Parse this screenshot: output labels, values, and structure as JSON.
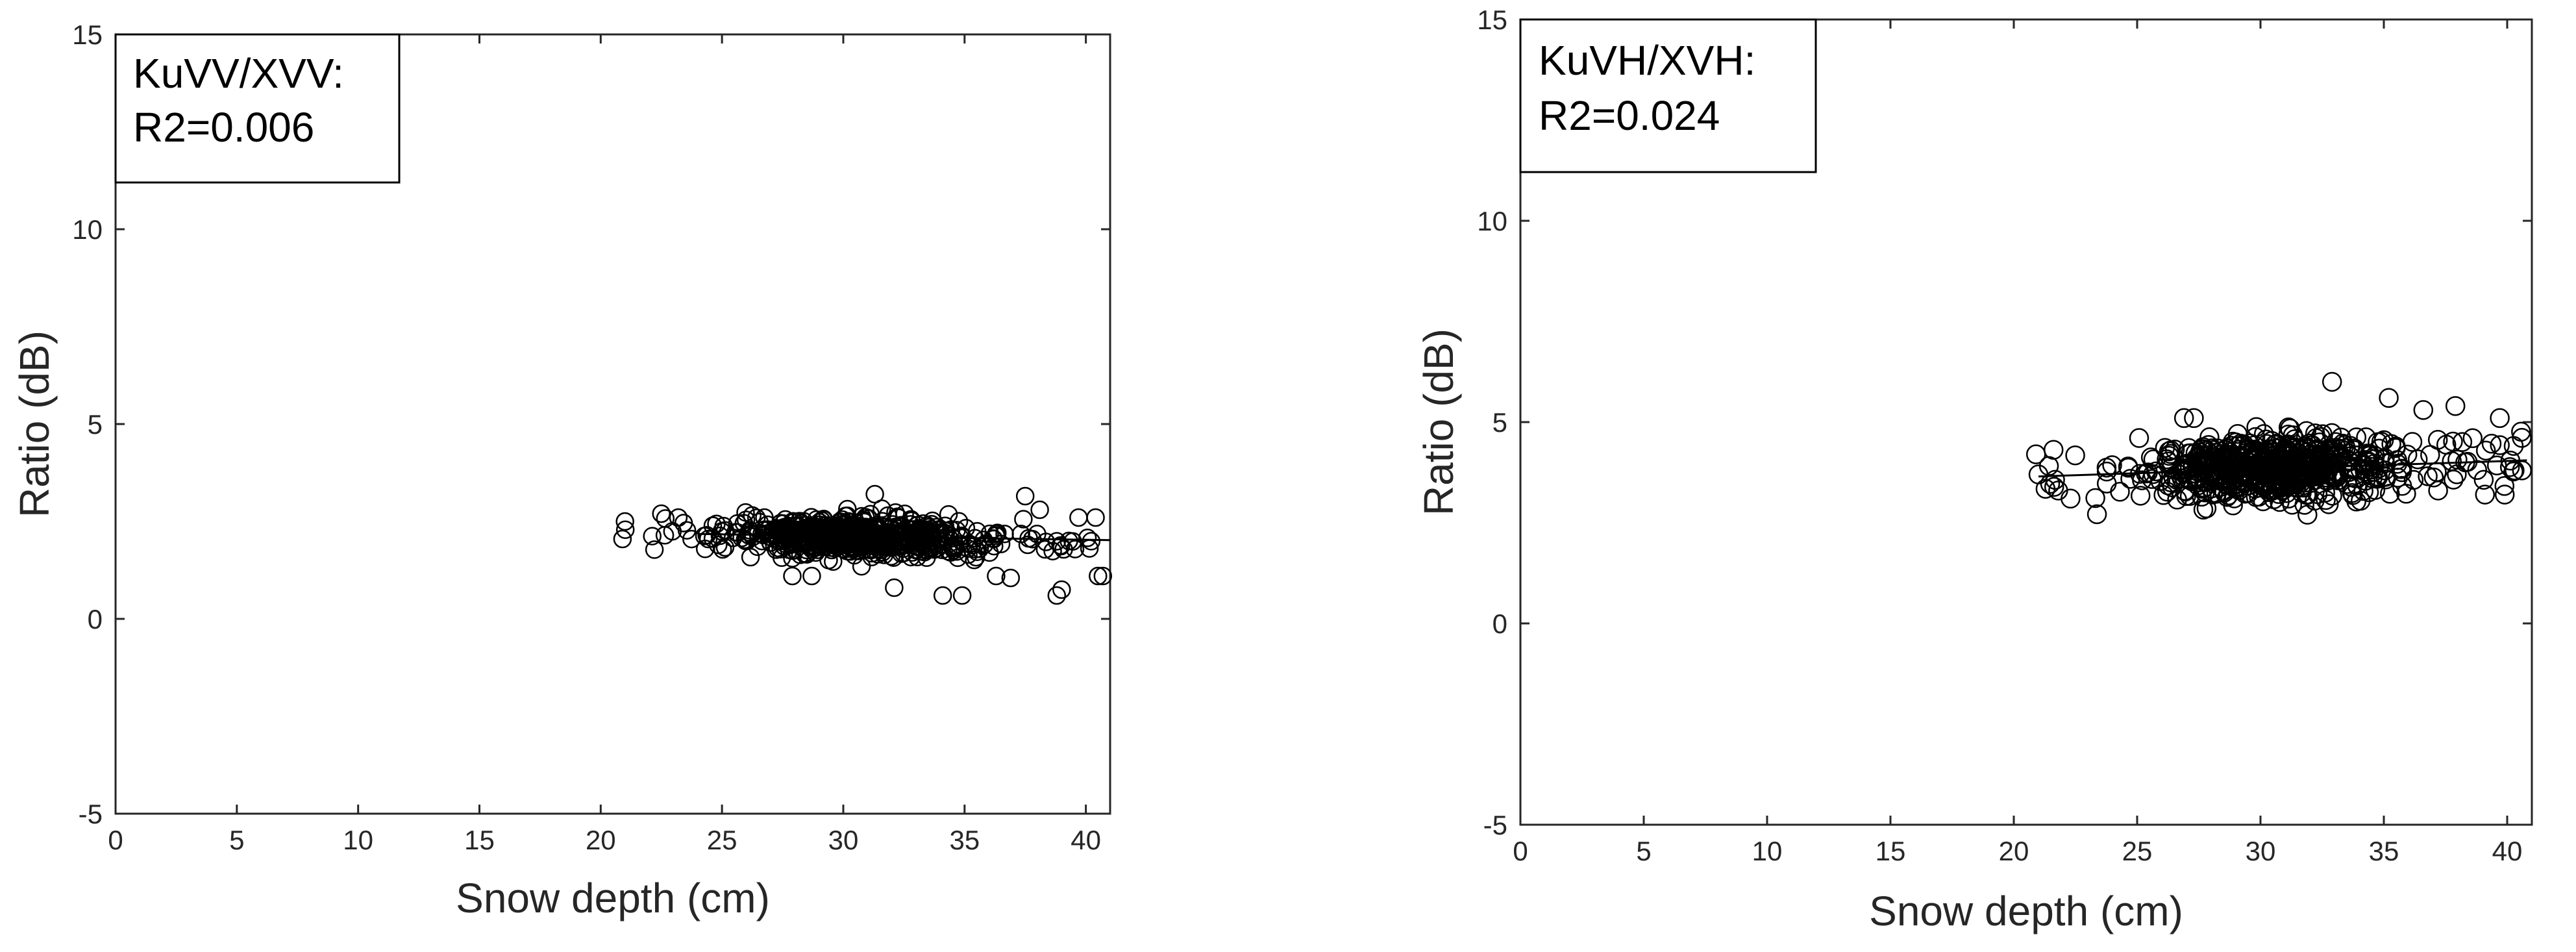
{
  "chart_data": [
    {
      "type": "scatter",
      "xlabel": "Snow depth (cm)",
      "ylabel": "Ratio (dB)",
      "xlim": [
        0,
        41
      ],
      "ylim": [
        -5,
        15
      ],
      "xticks": [
        0,
        5,
        10,
        15,
        20,
        25,
        30,
        35,
        40
      ],
      "yticks": [
        -5,
        0,
        5,
        10,
        15
      ],
      "grid": false,
      "annotation": [
        "KuVV/XVV:",
        "R2=0.006"
      ],
      "annotation_placement": "top-left",
      "marker": "open-circle",
      "fit_line": {
        "x": [
          24,
          41
        ],
        "y": [
          2.18,
          2.02
        ]
      },
      "cloud": {
        "x_min": 21,
        "x_max": 40.8,
        "y_center": 2.1,
        "y_spread": 0.55
      },
      "outliers": [
        {
          "x": 21.0,
          "y": 2.5
        },
        {
          "x": 20.9,
          "y": 2.05
        },
        {
          "x": 22.5,
          "y": 2.7
        },
        {
          "x": 23.2,
          "y": 2.6
        },
        {
          "x": 27.9,
          "y": 1.1
        },
        {
          "x": 28.7,
          "y": 1.1
        },
        {
          "x": 31.3,
          "y": 3.2
        },
        {
          "x": 32.1,
          "y": 0.8
        },
        {
          "x": 34.1,
          "y": 0.6
        },
        {
          "x": 34.9,
          "y": 0.6
        },
        {
          "x": 36.3,
          "y": 1.1
        },
        {
          "x": 36.9,
          "y": 1.05
        },
        {
          "x": 37.5,
          "y": 3.15
        },
        {
          "x": 38.1,
          "y": 2.8
        },
        {
          "x": 38.8,
          "y": 0.6
        },
        {
          "x": 39.0,
          "y": 0.75
        },
        {
          "x": 39.7,
          "y": 2.6
        },
        {
          "x": 40.4,
          "y": 2.6
        },
        {
          "x": 40.5,
          "y": 1.1
        },
        {
          "x": 40.7,
          "y": 1.1
        },
        {
          "x": 39.3,
          "y": 2.0
        },
        {
          "x": 37.6,
          "y": 1.9
        }
      ]
    },
    {
      "type": "scatter",
      "xlabel": "Snow depth (cm)",
      "ylabel": "Ratio (dB)",
      "xlim": [
        0,
        41
      ],
      "ylim": [
        -5,
        15
      ],
      "xticks": [
        0,
        5,
        10,
        15,
        20,
        25,
        30,
        35,
        40
      ],
      "yticks": [
        -5,
        0,
        5,
        10,
        15
      ],
      "grid": false,
      "annotation": [
        "KuVH/XVH:",
        "R2=0.024"
      ],
      "annotation_placement": "top-left",
      "marker": "open-circle",
      "fit_line": {
        "x": [
          21,
          40.8
        ],
        "y": [
          3.65,
          4.05
        ]
      },
      "cloud": {
        "x_min": 21,
        "x_max": 40.8,
        "y_center": 3.85,
        "y_spread": 0.85
      },
      "outliers": [
        {
          "x": 20.9,
          "y": 4.2
        },
        {
          "x": 21.0,
          "y": 3.7
        },
        {
          "x": 21.8,
          "y": 3.3
        },
        {
          "x": 22.3,
          "y": 3.1
        },
        {
          "x": 26.9,
          "y": 5.1
        },
        {
          "x": 27.3,
          "y": 5.1
        },
        {
          "x": 32.9,
          "y": 6.0
        },
        {
          "x": 35.2,
          "y": 5.6
        },
        {
          "x": 36.6,
          "y": 5.3
        },
        {
          "x": 37.2,
          "y": 3.3
        },
        {
          "x": 37.9,
          "y": 5.4
        },
        {
          "x": 38.6,
          "y": 4.6
        },
        {
          "x": 39.1,
          "y": 3.2
        },
        {
          "x": 39.7,
          "y": 5.1
        },
        {
          "x": 39.9,
          "y": 3.2
        },
        {
          "x": 40.3,
          "y": 3.8
        },
        {
          "x": 40.6,
          "y": 3.8
        },
        {
          "x": 38.3,
          "y": 4.0
        }
      ]
    }
  ]
}
